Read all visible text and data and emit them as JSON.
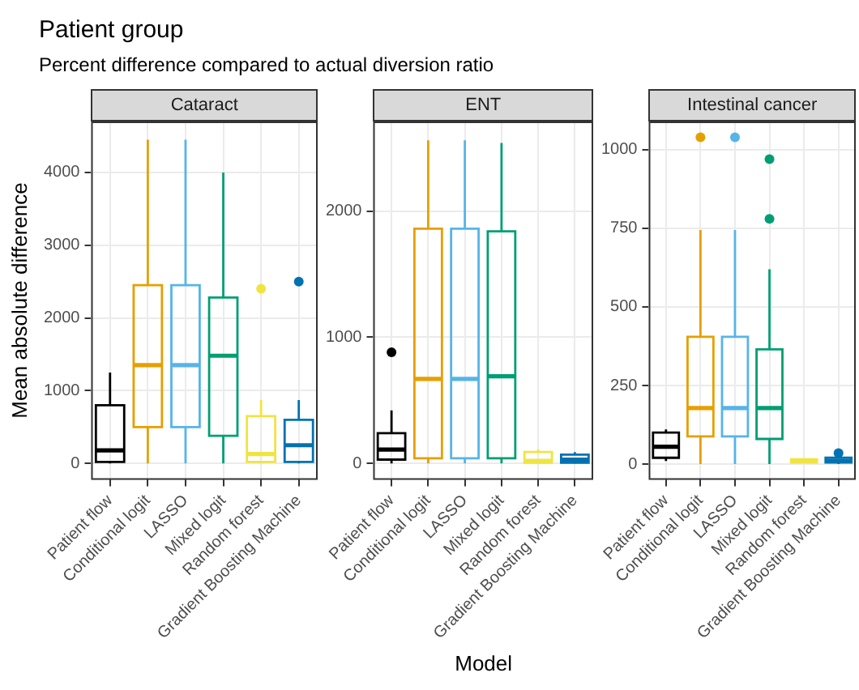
{
  "chart_data": [
    {
      "type": "box",
      "title": "Cataract",
      "ylabel": "Mean absolute difference",
      "annotations": [
        "Patient group",
        "Percent difference compared to actual diversion ratio"
      ],
      "categories": [
        "Patient flow",
        "Conditional logit",
        "LASSO",
        "Mixed logit",
        "Random forest",
        "Gradient Boosting Machine"
      ],
      "colors": [
        "#000000",
        "#e69f00",
        "#56b4e9",
        "#009e73",
        "#f0e442",
        "#0072b2"
      ],
      "boxes": [
        {
          "low": 0,
          "q1": 20,
          "median": 180,
          "q3": 800,
          "high": 1250
        },
        {
          "low": 0,
          "q1": 500,
          "median": 1350,
          "q3": 2450,
          "high": 4450
        },
        {
          "low": 0,
          "q1": 500,
          "median": 1350,
          "q3": 2450,
          "high": 4450
        },
        {
          "low": 0,
          "q1": 380,
          "median": 1480,
          "q3": 2280,
          "high": 4000
        },
        {
          "low": 0,
          "q1": 20,
          "median": 130,
          "q3": 650,
          "high": 870,
          "outliers": [
            2400
          ]
        },
        {
          "low": 0,
          "q1": 20,
          "median": 250,
          "q3": 600,
          "high": 870,
          "outliers": [
            2500
          ]
        }
      ],
      "ylim": [
        -225,
        4700
      ],
      "yticks": [
        0,
        1000,
        2000,
        3000,
        4000
      ],
      "grid": true
    },
    {
      "type": "box",
      "title": "ENT",
      "xlabel": "Model",
      "categories": [
        "Patient flow",
        "Conditional logit",
        "LASSO",
        "Mixed logit",
        "Random forest",
        "Gradient Boosting Machine"
      ],
      "colors": [
        "#000000",
        "#e69f00",
        "#56b4e9",
        "#009e73",
        "#f0e442",
        "#0072b2"
      ],
      "boxes": [
        {
          "low": 0,
          "q1": 30,
          "median": 110,
          "q3": 240,
          "high": 420,
          "outliers": [
            880
          ]
        },
        {
          "low": 0,
          "q1": 40,
          "median": 670,
          "q3": 1860,
          "high": 2560
        },
        {
          "low": 0,
          "q1": 40,
          "median": 670,
          "q3": 1860,
          "high": 2560
        },
        {
          "low": 0,
          "q1": 40,
          "median": 690,
          "q3": 1840,
          "high": 2540
        },
        {
          "low": 0,
          "q1": 5,
          "median": 20,
          "q3": 90,
          "high": 110
        },
        {
          "low": 0,
          "q1": 5,
          "median": 30,
          "q3": 70,
          "high": 90
        }
      ],
      "ylim": [
        -130,
        2710
      ],
      "yticks": [
        0,
        1000,
        2000
      ],
      "grid": true
    },
    {
      "type": "box",
      "title": "Intestinal cancer",
      "categories": [
        "Patient flow",
        "Conditional logit",
        "LASSO",
        "Mixed logit",
        "Random forest",
        "Gradient Boosting Machine"
      ],
      "colors": [
        "#000000",
        "#e69f00",
        "#56b4e9",
        "#009e73",
        "#f0e442",
        "#0072b2"
      ],
      "boxes": [
        {
          "low": 10,
          "q1": 20,
          "median": 55,
          "q3": 100,
          "high": 110
        },
        {
          "low": 0,
          "q1": 88,
          "median": 178,
          "q3": 405,
          "high": 745,
          "outliers": [
            1040
          ]
        },
        {
          "low": 0,
          "q1": 88,
          "median": 178,
          "q3": 405,
          "high": 745,
          "outliers": [
            1040
          ]
        },
        {
          "low": 0,
          "q1": 80,
          "median": 178,
          "q3": 365,
          "high": 620,
          "outliers": [
            780,
            970
          ]
        },
        {
          "low": 5,
          "q1": 5,
          "median": 10,
          "q3": 15,
          "high": 15
        },
        {
          "low": 0,
          "q1": 5,
          "median": 10,
          "q3": 20,
          "high": 30,
          "outliers": [
            35
          ]
        }
      ],
      "ylim": [
        -50,
        1090
      ],
      "yticks": [
        0,
        250,
        500,
        750,
        1000
      ],
      "grid": true
    }
  ]
}
